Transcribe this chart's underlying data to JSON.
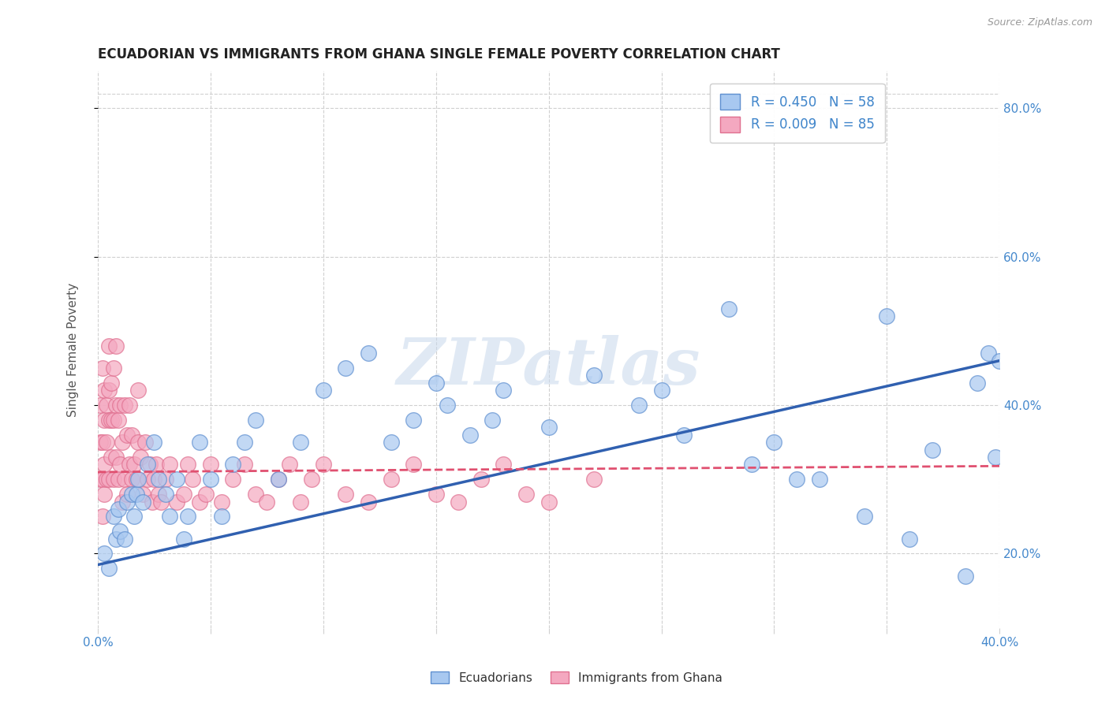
{
  "title": "ECUADORIAN VS IMMIGRANTS FROM GHANA SINGLE FEMALE POVERTY CORRELATION CHART",
  "source": "Source: ZipAtlas.com",
  "ylabel": "Single Female Poverty",
  "xlim": [
    0.0,
    0.4
  ],
  "ylim": [
    0.1,
    0.85
  ],
  "xticks": [
    0.0,
    0.05,
    0.1,
    0.15,
    0.2,
    0.25,
    0.3,
    0.35,
    0.4
  ],
  "yticks": [
    0.2,
    0.4,
    0.6,
    0.8
  ],
  "ytick_labels": [
    "20.0%",
    "40.0%",
    "60.0%",
    "80.0%"
  ],
  "blue_R": 0.45,
  "blue_N": 58,
  "pink_R": 0.009,
  "pink_N": 85,
  "blue_color": "#A8C8F0",
  "pink_color": "#F4A8C0",
  "blue_edge_color": "#6090D0",
  "pink_edge_color": "#E07090",
  "blue_line_color": "#3060B0",
  "pink_line_color": "#E05070",
  "legend_label_blue": "Ecuadorians",
  "legend_label_pink": "Immigrants from Ghana",
  "watermark": "ZIPatlas",
  "background_color": "#ffffff",
  "grid_color": "#d0d0d0",
  "title_color": "#222222",
  "axis_label_color": "#555555",
  "blue_scatter_x": [
    0.003,
    0.005,
    0.007,
    0.008,
    0.009,
    0.01,
    0.012,
    0.013,
    0.015,
    0.016,
    0.017,
    0.018,
    0.02,
    0.022,
    0.025,
    0.027,
    0.03,
    0.032,
    0.035,
    0.038,
    0.04,
    0.045,
    0.05,
    0.055,
    0.06,
    0.065,
    0.07,
    0.08,
    0.09,
    0.1,
    0.11,
    0.12,
    0.13,
    0.14,
    0.15,
    0.165,
    0.18,
    0.2,
    0.22,
    0.25,
    0.28,
    0.3,
    0.32,
    0.35,
    0.37,
    0.385,
    0.39,
    0.395,
    0.398,
    0.4,
    0.155,
    0.175,
    0.24,
    0.26,
    0.29,
    0.31,
    0.34,
    0.36
  ],
  "blue_scatter_y": [
    0.2,
    0.18,
    0.25,
    0.22,
    0.26,
    0.23,
    0.22,
    0.27,
    0.28,
    0.25,
    0.28,
    0.3,
    0.27,
    0.32,
    0.35,
    0.3,
    0.28,
    0.25,
    0.3,
    0.22,
    0.25,
    0.35,
    0.3,
    0.25,
    0.32,
    0.35,
    0.38,
    0.3,
    0.35,
    0.42,
    0.45,
    0.47,
    0.35,
    0.38,
    0.43,
    0.36,
    0.42,
    0.37,
    0.44,
    0.42,
    0.53,
    0.35,
    0.3,
    0.52,
    0.34,
    0.17,
    0.43,
    0.47,
    0.33,
    0.46,
    0.4,
    0.38,
    0.4,
    0.36,
    0.32,
    0.3,
    0.25,
    0.22
  ],
  "pink_scatter_x": [
    0.001,
    0.001,
    0.001,
    0.002,
    0.002,
    0.002,
    0.002,
    0.003,
    0.003,
    0.003,
    0.003,
    0.004,
    0.004,
    0.004,
    0.005,
    0.005,
    0.005,
    0.005,
    0.006,
    0.006,
    0.006,
    0.007,
    0.007,
    0.007,
    0.008,
    0.008,
    0.008,
    0.009,
    0.009,
    0.01,
    0.01,
    0.011,
    0.011,
    0.012,
    0.012,
    0.013,
    0.013,
    0.014,
    0.014,
    0.015,
    0.015,
    0.016,
    0.017,
    0.018,
    0.018,
    0.019,
    0.02,
    0.021,
    0.022,
    0.023,
    0.024,
    0.025,
    0.026,
    0.027,
    0.028,
    0.03,
    0.032,
    0.035,
    0.038,
    0.04,
    0.042,
    0.045,
    0.048,
    0.05,
    0.055,
    0.06,
    0.065,
    0.07,
    0.075,
    0.08,
    0.085,
    0.09,
    0.095,
    0.1,
    0.11,
    0.12,
    0.13,
    0.14,
    0.15,
    0.16,
    0.17,
    0.18,
    0.19,
    0.2,
    0.22
  ],
  "pink_scatter_y": [
    0.3,
    0.35,
    0.4,
    0.25,
    0.3,
    0.35,
    0.45,
    0.28,
    0.32,
    0.38,
    0.42,
    0.3,
    0.35,
    0.4,
    0.3,
    0.38,
    0.42,
    0.48,
    0.33,
    0.38,
    0.43,
    0.3,
    0.38,
    0.45,
    0.33,
    0.4,
    0.48,
    0.3,
    0.38,
    0.32,
    0.4,
    0.27,
    0.35,
    0.3,
    0.4,
    0.28,
    0.36,
    0.32,
    0.4,
    0.3,
    0.36,
    0.32,
    0.3,
    0.35,
    0.42,
    0.33,
    0.28,
    0.35,
    0.3,
    0.32,
    0.27,
    0.3,
    0.32,
    0.28,
    0.27,
    0.3,
    0.32,
    0.27,
    0.28,
    0.32,
    0.3,
    0.27,
    0.28,
    0.32,
    0.27,
    0.3,
    0.32,
    0.28,
    0.27,
    0.3,
    0.32,
    0.27,
    0.3,
    0.32,
    0.28,
    0.27,
    0.3,
    0.32,
    0.28,
    0.27,
    0.3,
    0.32,
    0.28,
    0.27,
    0.3
  ],
  "blue_trend_x": [
    0.0,
    0.4
  ],
  "blue_trend_y": [
    0.185,
    0.46
  ],
  "pink_trend_x": [
    0.0,
    0.4
  ],
  "pink_trend_y": [
    0.31,
    0.318
  ]
}
